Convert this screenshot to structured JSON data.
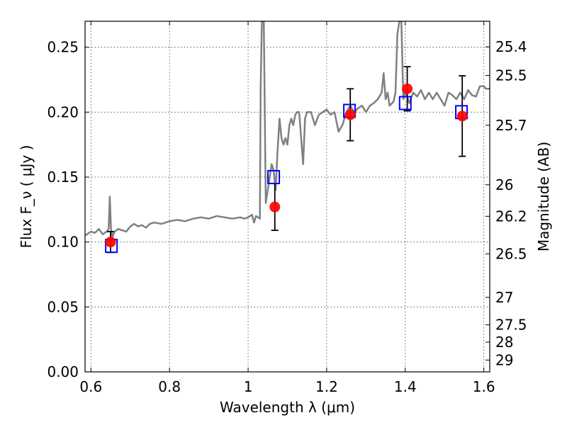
{
  "chart_data": {
    "type": "line",
    "xlabel": "Wavelength  λ (μm)",
    "ylabel": "Flux  F_ν  ( μJy )",
    "ylabel_right": "Magnitude (AB)",
    "xlim": [
      0.585,
      1.615
    ],
    "ylim": [
      0.0,
      0.27
    ],
    "grid": true,
    "x_ticks": [
      0.6,
      0.8,
      1.0,
      1.2,
      1.4,
      1.6
    ],
    "x_tick_labels": [
      "0.6",
      "0.8",
      "1",
      "1.2",
      "1.4",
      "1.6"
    ],
    "y_ticks": [
      0.0,
      0.05,
      0.1,
      0.15,
      0.2,
      0.25
    ],
    "y_tick_labels": [
      "0.00",
      "0.05",
      "0.10",
      "0.15",
      "0.20",
      "0.25"
    ],
    "right_ticks": [
      {
        "label": "25.4",
        "flux": 0.2503
      },
      {
        "label": "25.5",
        "flux": 0.2283
      },
      {
        "label": "25.7",
        "flux": 0.1899
      },
      {
        "label": "26",
        "flux": 0.1441
      },
      {
        "label": "26.2",
        "flux": 0.1198
      },
      {
        "label": "26.5",
        "flux": 0.0909
      },
      {
        "label": "27",
        "flux": 0.0574
      },
      {
        "label": "27.5",
        "flux": 0.0362
      },
      {
        "label": "28",
        "flux": 0.0229
      },
      {
        "label": "29",
        "flux": 0.0091
      }
    ],
    "series": [
      {
        "kind": "line",
        "color": "#808080",
        "x": [
          0.585,
          0.6,
          0.61,
          0.62,
          0.63,
          0.64,
          0.645,
          0.648,
          0.651,
          0.655,
          0.66,
          0.67,
          0.68,
          0.69,
          0.7,
          0.71,
          0.72,
          0.73,
          0.74,
          0.75,
          0.76,
          0.78,
          0.8,
          0.82,
          0.84,
          0.86,
          0.88,
          0.9,
          0.92,
          0.94,
          0.96,
          0.98,
          0.99,
          1.0,
          1.01,
          1.015,
          1.02,
          1.03,
          1.032,
          1.035,
          1.04,
          1.045,
          1.05,
          1.055,
          1.06,
          1.065,
          1.07,
          1.075,
          1.08,
          1.085,
          1.09,
          1.095,
          1.1,
          1.105,
          1.11,
          1.115,
          1.12,
          1.125,
          1.13,
          1.135,
          1.14,
          1.145,
          1.15,
          1.16,
          1.17,
          1.18,
          1.19,
          1.2,
          1.21,
          1.22,
          1.23,
          1.24,
          1.25,
          1.26,
          1.27,
          1.28,
          1.29,
          1.3,
          1.31,
          1.32,
          1.33,
          1.34,
          1.345,
          1.35,
          1.355,
          1.36,
          1.37,
          1.375,
          1.38,
          1.385,
          1.39,
          1.395,
          1.4,
          1.405,
          1.41,
          1.42,
          1.43,
          1.44,
          1.45,
          1.46,
          1.47,
          1.48,
          1.49,
          1.5,
          1.51,
          1.52,
          1.53,
          1.54,
          1.55,
          1.56,
          1.57,
          1.58,
          1.59,
          1.6,
          1.605,
          1.61,
          1.615
        ],
        "y": [
          0.105,
          0.108,
          0.107,
          0.11,
          0.106,
          0.108,
          0.11,
          0.135,
          0.11,
          0.104,
          0.108,
          0.11,
          0.109,
          0.108,
          0.112,
          0.114,
          0.112,
          0.113,
          0.111,
          0.114,
          0.115,
          0.114,
          0.116,
          0.117,
          0.116,
          0.118,
          0.119,
          0.118,
          0.12,
          0.119,
          0.118,
          0.119,
          0.118,
          0.119,
          0.121,
          0.115,
          0.12,
          0.118,
          0.22,
          0.27,
          0.27,
          0.13,
          0.14,
          0.15,
          0.16,
          0.155,
          0.14,
          0.17,
          0.195,
          0.18,
          0.175,
          0.18,
          0.175,
          0.19,
          0.195,
          0.19,
          0.198,
          0.2,
          0.2,
          0.18,
          0.16,
          0.195,
          0.2,
          0.2,
          0.19,
          0.198,
          0.2,
          0.202,
          0.198,
          0.2,
          0.185,
          0.19,
          0.2,
          0.205,
          0.2,
          0.203,
          0.205,
          0.2,
          0.205,
          0.207,
          0.21,
          0.215,
          0.23,
          0.21,
          0.215,
          0.205,
          0.208,
          0.215,
          0.26,
          0.27,
          0.27,
          0.21,
          0.215,
          0.212,
          0.207,
          0.215,
          0.212,
          0.217,
          0.21,
          0.215,
          0.21,
          0.215,
          0.21,
          0.205,
          0.215,
          0.213,
          0.21,
          0.215,
          0.21,
          0.217,
          0.213,
          0.212,
          0.22,
          0.22,
          0.218,
          0.218,
          0.218
        ]
      },
      {
        "kind": "scatter",
        "marker": "circle",
        "color": "#ff0000",
        "x": [
          0.65,
          1.068,
          1.26,
          1.405,
          1.545
        ],
        "y": [
          0.1,
          0.127,
          0.198,
          0.218,
          0.197
        ],
        "yerr": [
          0.008,
          0.018,
          0.02,
          0.017,
          0.031
        ]
      },
      {
        "kind": "scatter",
        "marker": "open-square",
        "color": "#0000ff",
        "x": [
          0.652,
          1.065,
          1.258,
          1.4,
          1.543
        ],
        "y": [
          0.097,
          0.15,
          0.201,
          0.207,
          0.2
        ]
      }
    ]
  }
}
